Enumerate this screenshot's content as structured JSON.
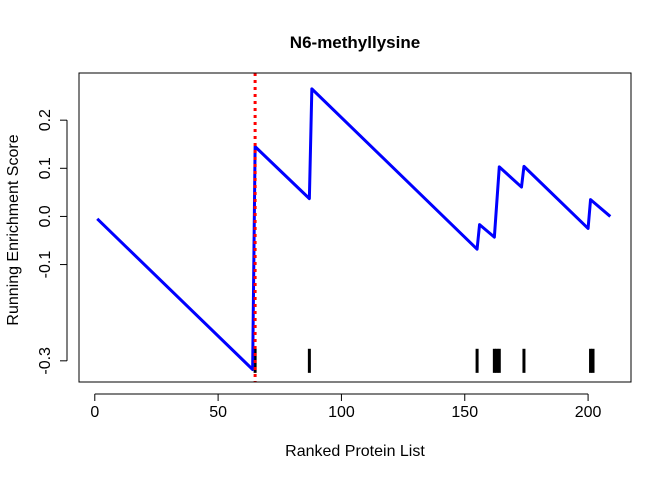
{
  "chart_data": {
    "type": "line",
    "title": "N6-methyllysine",
    "xlabel": "Ranked Protein List",
    "ylabel": "Running Enrichment Score",
    "xlim": [
      -6.4,
      217.4
    ],
    "ylim": [
      -0.344,
      0.298
    ],
    "x_ticks": [
      0,
      50,
      100,
      150,
      200
    ],
    "x_tick_labels": [
      "0",
      "50",
      "100",
      "150",
      "200"
    ],
    "y_ticks": [
      -0.3,
      -0.1,
      0.0,
      0.1,
      0.2
    ],
    "y_tick_labels": [
      "-0.3",
      "-0.1",
      "0.0",
      "0.1",
      "0.2"
    ],
    "grid": false,
    "series": [
      {
        "color": "#0000ff",
        "points": [
          [
            1,
            -0.005
          ],
          [
            64,
            -0.318
          ],
          [
            65,
            0.145
          ],
          [
            87,
            0.037
          ],
          [
            88,
            0.265
          ],
          [
            155,
            -0.068
          ],
          [
            156,
            -0.017
          ],
          [
            162,
            -0.043
          ],
          [
            164,
            0.103
          ],
          [
            173,
            0.061
          ],
          [
            174,
            0.104
          ],
          [
            200,
            -0.025
          ],
          [
            201,
            0.035
          ],
          [
            209,
            0.0
          ]
        ]
      }
    ],
    "vline": {
      "x": 65,
      "color": "#ff0000",
      "style": "dotted"
    },
    "hit_ticks": [
      65,
      87,
      155,
      162,
      163,
      164,
      174,
      201,
      202
    ],
    "hit_tick_range": [
      -0.325,
      -0.275
    ]
  }
}
